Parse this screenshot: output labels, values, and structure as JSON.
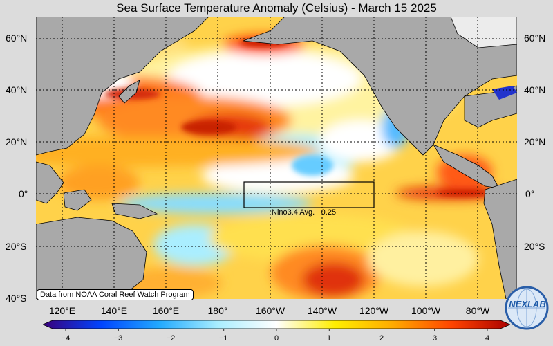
{
  "title": "Sea Surface Temperature Anomaly (Celsius) - March 15 2025",
  "map": {
    "lat_labels": [
      "60°N",
      "40°N",
      "20°N",
      "0°",
      "20°S",
      "40°S"
    ],
    "lon_labels": [
      "120°E",
      "140°E",
      "160°E",
      "180°",
      "160°W",
      "140°W",
      "120°W",
      "100°W",
      "80°W"
    ],
    "nino_box_label": "Nino3.4 Avg. +0.25",
    "source_note": "Data from NOAA Coral Reef Watch Program"
  },
  "colorbar": {
    "ticks": [
      "−4",
      "−3",
      "−2",
      "−1",
      "0",
      "1",
      "2",
      "3",
      "4"
    ],
    "colors": [
      "#3a007a",
      "#0044ff",
      "#22aaff",
      "#aaeeff",
      "#ffffff",
      "#ffee00",
      "#ffaa00",
      "#ff4400",
      "#aa0000"
    ]
  },
  "logo": {
    "text": "NEXLAB",
    "icon": "globe-logo-icon"
  }
}
